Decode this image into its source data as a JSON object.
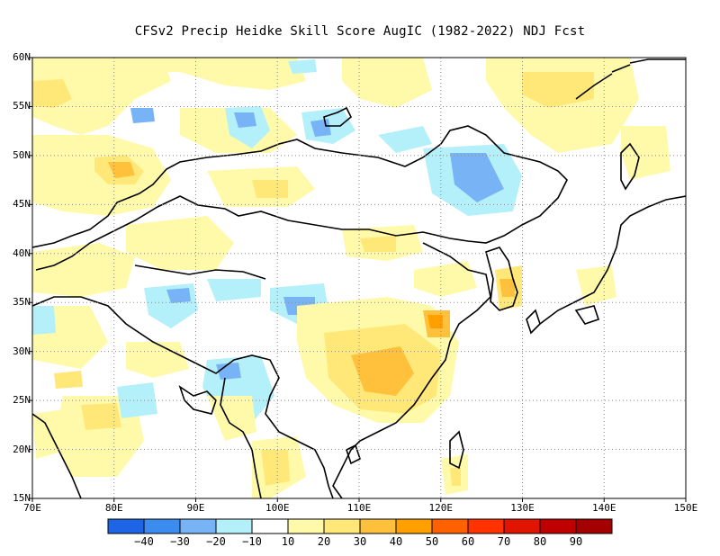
{
  "title": "CFSv2 Precip Heidke Skill Score AugIC (1982-2022) NDJ Fcst",
  "map": {
    "lon_range": [
      70,
      150
    ],
    "lat_range": [
      15,
      60
    ],
    "x_ticks": [
      "70E",
      "80E",
      "90E",
      "100E",
      "110E",
      "120E",
      "130E",
      "140E",
      "150E"
    ],
    "y_ticks": [
      "60N",
      "55N",
      "50N",
      "45N",
      "40N",
      "35N",
      "30N",
      "25N",
      "20N",
      "15N"
    ],
    "grid": true
  },
  "colorbar": {
    "labels": [
      "−40",
      "−30",
      "−20",
      "−10",
      "10",
      "20",
      "30",
      "40",
      "50",
      "60",
      "70",
      "80",
      "90"
    ],
    "colors": [
      "#1e64e6",
      "#3c8cf0",
      "#78b4f5",
      "#b4f0fa",
      "#ffffff",
      "#fffaaa",
      "#ffe878",
      "#ffc03c",
      "#ffa000",
      "#ff6000",
      "#ff3200",
      "#e11400",
      "#c00000",
      "#a50000"
    ]
  },
  "fill_colors": {
    "light_yellow": "#fffaaa",
    "yellow": "#ffe878",
    "orange": "#ffc03c",
    "dark_orange": "#ffa000",
    "light_blue": "#b4f0fa",
    "blue": "#78b4f5",
    "dark_blue": "#3c8cf0"
  }
}
